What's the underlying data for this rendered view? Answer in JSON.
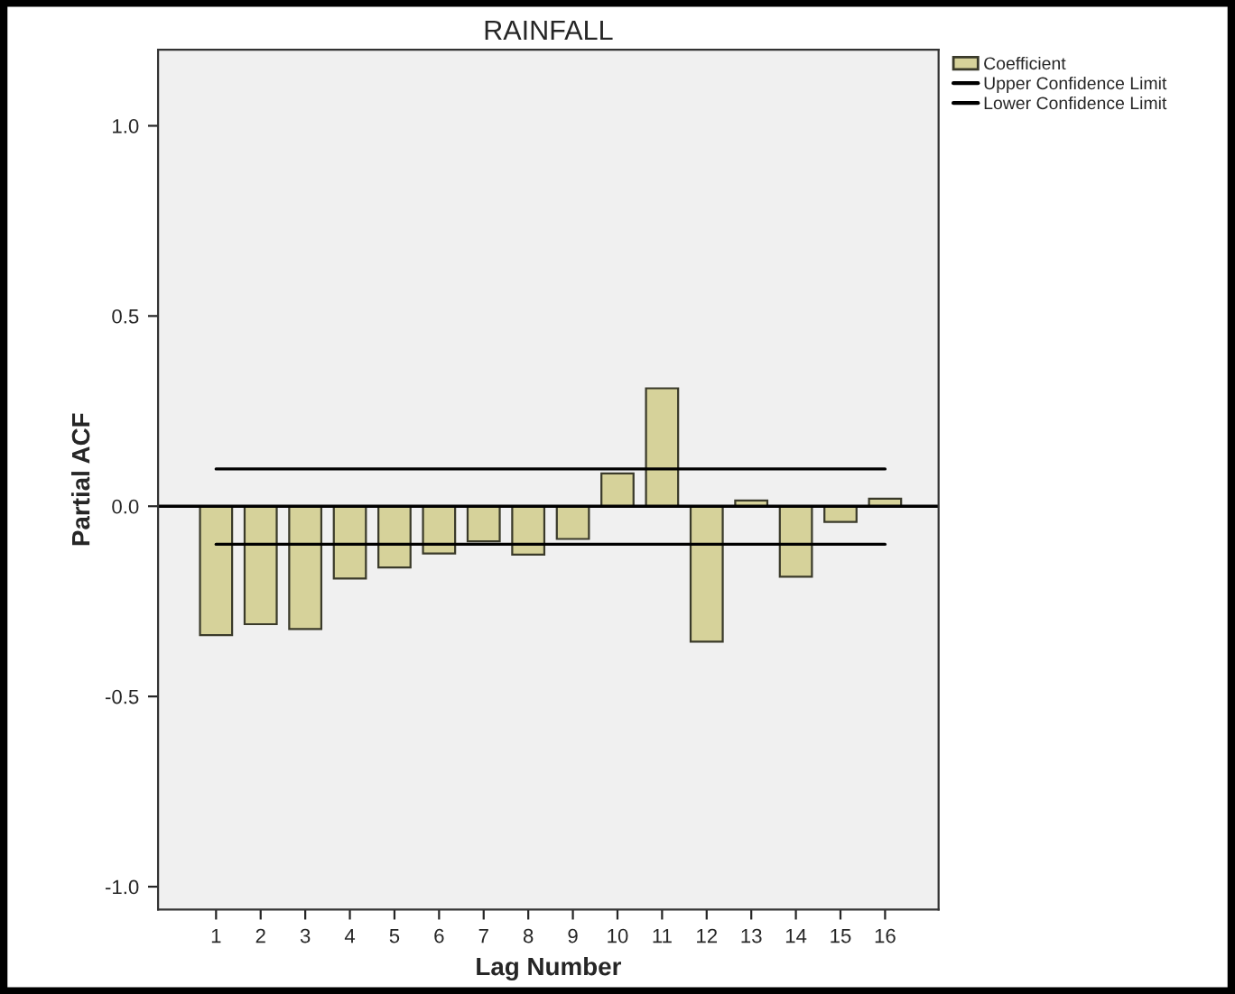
{
  "chart_data": {
    "type": "bar",
    "title": "RAINFALL",
    "xlabel": "Lag Number",
    "ylabel": "Partial ACF",
    "categories": [
      "1",
      "2",
      "3",
      "4",
      "5",
      "6",
      "7",
      "8",
      "9",
      "10",
      "11",
      "12",
      "13",
      "14",
      "15",
      "16"
    ],
    "series": [
      {
        "name": "Coefficient",
        "color": "#d6d29a",
        "values": [
          -0.339,
          -0.31,
          -0.323,
          -0.19,
          -0.161,
          -0.124,
          -0.092,
          -0.127,
          -0.086,
          0.086,
          0.31,
          -0.356,
          0.015,
          -0.185,
          -0.041,
          0.02
        ]
      },
      {
        "name": "Upper Confidence Limit",
        "type": "line",
        "color": "#000000",
        "values": [
          0.098,
          0.098,
          0.098,
          0.098,
          0.098,
          0.098,
          0.098,
          0.098,
          0.098,
          0.098,
          0.098,
          0.098,
          0.098,
          0.098,
          0.098,
          0.098
        ]
      },
      {
        "name": "Lower Confidence Limit",
        "type": "line",
        "color": "#000000",
        "values": [
          -0.1,
          -0.1,
          -0.1,
          -0.1,
          -0.1,
          -0.1,
          -0.1,
          -0.1,
          -0.1,
          -0.1,
          -0.1,
          -0.1,
          -0.1,
          -0.1,
          -0.1,
          -0.1
        ]
      }
    ],
    "ylim": [
      -1.06,
      1.2
    ],
    "yticks": [
      {
        "value": -1,
        "label": "-1.0"
      },
      {
        "value": -0.5,
        "label": "-0.5"
      },
      {
        "value": 0,
        "label": "0.0"
      },
      {
        "value": 0.5,
        "label": "0.5"
      },
      {
        "value": 1,
        "label": "1.0"
      }
    ],
    "ref_lines": [
      {
        "axis": "y",
        "value": 0,
        "color": "#000000"
      }
    ],
    "grid": false,
    "legend": "top right",
    "marker": "none",
    "line_style": "solid"
  }
}
